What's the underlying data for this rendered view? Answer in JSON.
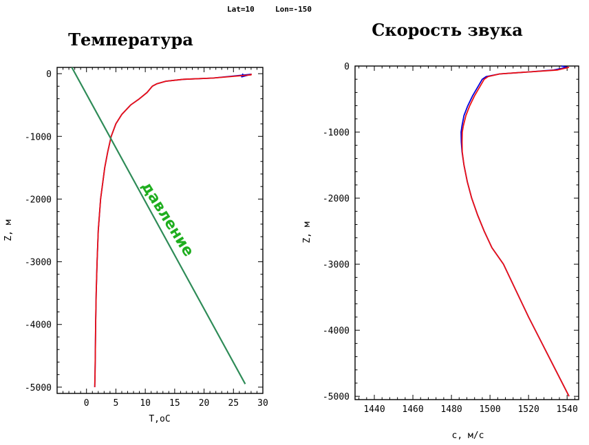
{
  "header": {
    "lat_label": "Lat=10",
    "lon_label": "Lon=-150"
  },
  "chart_data": [
    {
      "type": "line",
      "title": "Температура",
      "xlabel": "T,oC",
      "ylabel": "Z, м",
      "xlim": [
        -5,
        30
      ],
      "ylim": [
        -5100,
        100
      ],
      "xticks": [
        0,
        5,
        10,
        15,
        20,
        25,
        30
      ],
      "yticks": [
        0,
        -1000,
        -2000,
        -3000,
        -4000,
        -5000
      ],
      "annotation": {
        "text": "давление",
        "color": "#1fae1f"
      },
      "series": [
        {
          "color": "#0000dd",
          "x": [
            26.6,
            26.4,
            28.0,
            21.5,
            16.5,
            13.5,
            12.0,
            11.2,
            10.3,
            9.0,
            7.5,
            6.0,
            5.0,
            4.2,
            3.6,
            3.1,
            2.4,
            2.0,
            1.8,
            1.65,
            1.55,
            1.5,
            1.45,
            1.42,
            1.4
          ],
          "y": [
            0,
            -50,
            -10,
            -70,
            -90,
            -120,
            -160,
            -200,
            -300,
            -400,
            -500,
            -650,
            -800,
            -1000,
            -1250,
            -1500,
            -2000,
            -2500,
            -3000,
            -3500,
            -4000,
            -4500,
            -4800,
            -4950,
            -5000
          ]
        },
        {
          "color": "#ee1111",
          "x": [
            28.0,
            28.0,
            21.5,
            16.5,
            13.5,
            12.0,
            11.2,
            10.3,
            9.0,
            7.5,
            6.0,
            5.0,
            4.2,
            3.6,
            3.1,
            2.4,
            2.0,
            1.8,
            1.65,
            1.55,
            1.5,
            1.45,
            1.42,
            1.4
          ],
          "y": [
            0,
            -20,
            -70,
            -90,
            -120,
            -160,
            -200,
            -300,
            -400,
            -500,
            -650,
            -800,
            -1000,
            -1250,
            -1500,
            -2000,
            -2500,
            -3000,
            -3500,
            -4000,
            -4500,
            -4800,
            -4950,
            -5000
          ]
        },
        {
          "color": "#2e8b57",
          "x": [
            -2.5,
            27.0
          ],
          "y": [
            100,
            -4950
          ]
        }
      ]
    },
    {
      "type": "line",
      "title": "Скорость звука",
      "xlabel": "c, м/с",
      "ylabel": "Z, м",
      "xlim": [
        1430,
        1546
      ],
      "ylim": [
        -5050,
        0
      ],
      "xticks": [
        1440,
        1460,
        1480,
        1500,
        1520,
        1540
      ],
      "yticks": [
        0,
        -1000,
        -2000,
        -3000,
        -4000,
        -5000
      ],
      "series": [
        {
          "color": "#0000dd",
          "x": [
            1537.0,
            1540.0,
            1533.0,
            1520.0,
            1505.0,
            1498.0,
            1496.0,
            1494.0,
            1491.0,
            1488.5,
            1486.5,
            1485.5,
            1485.0,
            1485.1,
            1485.5,
            1486.5,
            1488.2,
            1490.5,
            1493.5,
            1497.0,
            1501.0,
            1507.0,
            1513.5,
            1520.0,
            1527.0,
            1534.0,
            1541.0
          ],
          "y": [
            0,
            -20,
            -60,
            -90,
            -120,
            -160,
            -200,
            -300,
            -450,
            -600,
            -750,
            -900,
            -1000,
            -1150,
            -1300,
            -1500,
            -1750,
            -2000,
            -2250,
            -2500,
            -2750,
            -3000,
            -3400,
            -3800,
            -4200,
            -4600,
            -5000
          ]
        },
        {
          "color": "#ee1111",
          "x": [
            1541.0,
            1535.0,
            1520.0,
            1505.0,
            1499.0,
            1497.0,
            1495.0,
            1492.0,
            1489.5,
            1487.5,
            1486.2,
            1485.6,
            1485.5,
            1485.6,
            1486.5,
            1488.2,
            1490.5,
            1493.5,
            1497.0,
            1501.0,
            1507.0,
            1513.5,
            1520.0,
            1527.0,
            1534.0,
            1541.0
          ],
          "y": [
            -20,
            -60,
            -90,
            -120,
            -160,
            -200,
            -300,
            -450,
            -600,
            -750,
            -900,
            -1000,
            -1150,
            -1300,
            -1500,
            -1750,
            -2000,
            -2250,
            -2500,
            -2750,
            -3000,
            -3400,
            -3800,
            -4200,
            -4600,
            -5000
          ]
        }
      ]
    }
  ]
}
